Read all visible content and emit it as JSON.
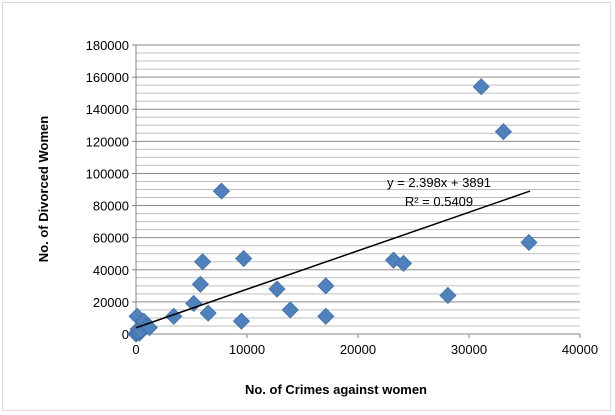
{
  "chart_data": {
    "type": "scatter",
    "title": "",
    "xlabel": "No. of Crimes against women",
    "ylabel": "No. of Divorced Women",
    "xlim": [
      0,
      40000
    ],
    "ylim": [
      0,
      180000
    ],
    "x_ticks": [
      "0",
      "10000",
      "20000",
      "30000",
      "40000"
    ],
    "y_ticks": [
      "0",
      "20000",
      "40000",
      "60000",
      "80000",
      "100000",
      "120000",
      "140000",
      "160000",
      "180000"
    ],
    "grid": true,
    "legend": "none",
    "marker": "diamond",
    "marker_color": "#4f81bd",
    "trendline": {
      "type": "linear",
      "slope": 2.398,
      "intercept": 3891,
      "x_range": [
        0,
        35500
      ],
      "equation_label": "y = 2.398x + 3891",
      "r2_label": "R² = 0.5409",
      "color": "#000000"
    },
    "points": [
      {
        "x": 0,
        "y": 0
      },
      {
        "x": 100,
        "y": 1000
      },
      {
        "x": 200,
        "y": 3000
      },
      {
        "x": 300,
        "y": 500
      },
      {
        "x": 400,
        "y": 2000
      },
      {
        "x": 100,
        "y": 11000
      },
      {
        "x": 700,
        "y": 8000
      },
      {
        "x": 1000,
        "y": 5000
      },
      {
        "x": 1200,
        "y": 4000
      },
      {
        "x": 3400,
        "y": 11000
      },
      {
        "x": 5200,
        "y": 19000
      },
      {
        "x": 5800,
        "y": 31000
      },
      {
        "x": 6000,
        "y": 45000
      },
      {
        "x": 6500,
        "y": 13000
      },
      {
        "x": 7700,
        "y": 89000
      },
      {
        "x": 9500,
        "y": 8000
      },
      {
        "x": 9700,
        "y": 47000
      },
      {
        "x": 12700,
        "y": 28000
      },
      {
        "x": 13900,
        "y": 15000
      },
      {
        "x": 17100,
        "y": 30000
      },
      {
        "x": 17100,
        "y": 11000
      },
      {
        "x": 23200,
        "y": 46000
      },
      {
        "x": 24100,
        "y": 44000
      },
      {
        "x": 28100,
        "y": 24000
      },
      {
        "x": 31100,
        "y": 154000
      },
      {
        "x": 33100,
        "y": 126000
      },
      {
        "x": 35400,
        "y": 57000
      }
    ]
  }
}
